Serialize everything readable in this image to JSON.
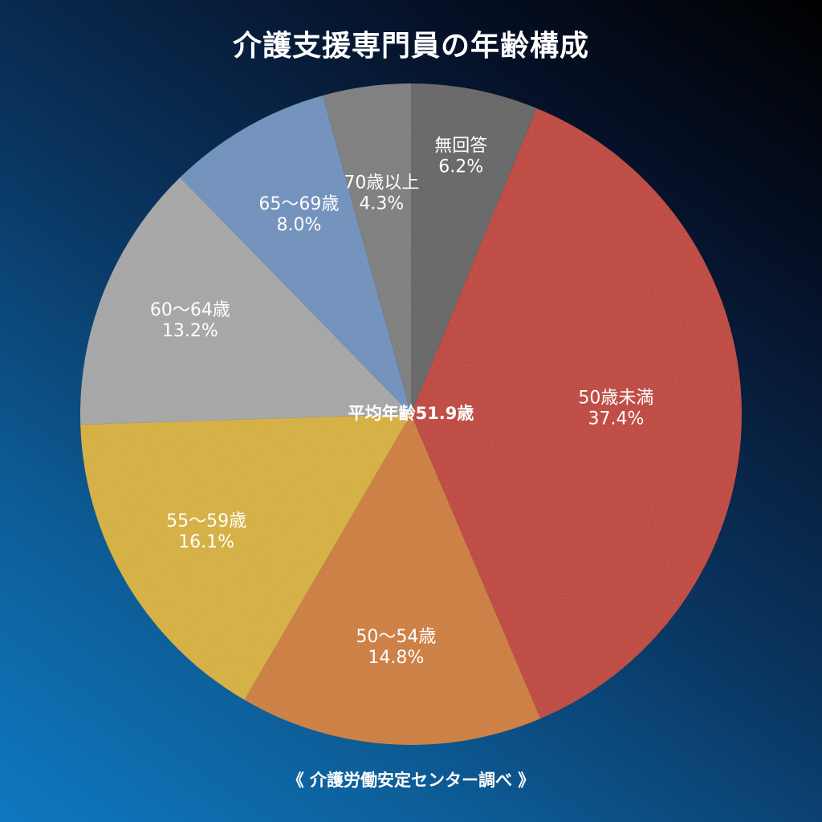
{
  "chart_data": {
    "type": "pie",
    "title": "介護支援専門員の年齢構成",
    "center_label": "平均年齢51.9歳",
    "source": "《 介護労働安定センター調べ 》",
    "start_angle_deg": 0,
    "direction": "clockwise",
    "slices": [
      {
        "label": "無回答",
        "value": 6.2,
        "value_label": "6.2%",
        "color": "#5f5f5f"
      },
      {
        "label": "50歳未満",
        "value": 37.4,
        "value_label": "37.4%",
        "color": "#c0392b"
      },
      {
        "label": "50〜54歳",
        "value": 14.8,
        "value_label": "14.8%",
        "color": "#cf7a2c"
      },
      {
        "label": "55〜59歳",
        "value": 16.1,
        "value_label": "16.1%",
        "color": "#d8b02c"
      },
      {
        "label": "60〜64歳",
        "value": 13.2,
        "value_label": "13.2%",
        "color": "#a6a6a6"
      },
      {
        "label": "65〜69歳",
        "value": 8.0,
        "value_label": "8.0%",
        "color": "#6b8fbd"
      },
      {
        "label": "70歳以上",
        "value": 4.3,
        "value_label": "4.3%",
        "color": "#7a7a7a"
      }
    ]
  }
}
